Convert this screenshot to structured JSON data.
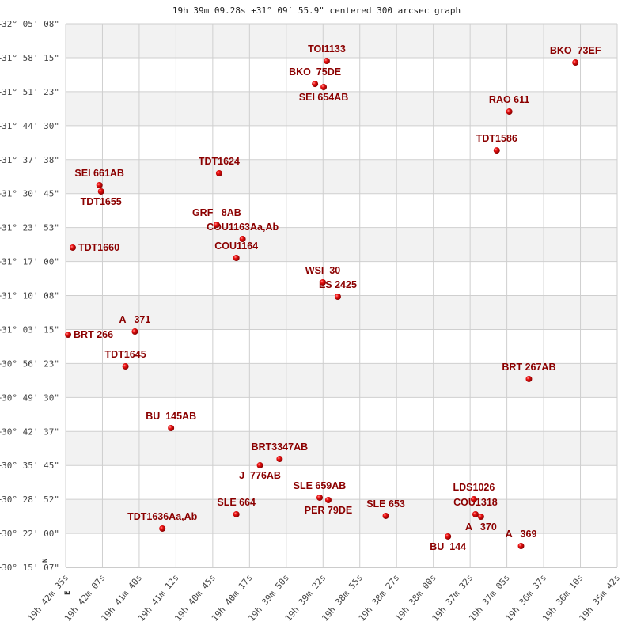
{
  "chart_data": {
    "type": "scatter",
    "title": "19h 39m 09.28s +31° 09′ 55.9\" centered 300 arcsec graph",
    "x_ticks": [
      "19h 42m 35s",
      "19h 42m 07s",
      "19h 41m 40s",
      "19h 41m 12s",
      "19h 40m 45s",
      "19h 40m 17s",
      "19h 39m 50s",
      "19h 39m 22s",
      "19h 38m 55s",
      "19h 38m 27s",
      "19h 38m 00s",
      "19h 37m 32s",
      "19h 37m 05s",
      "19h 36m 37s",
      "19h 36m 10s",
      "19h 35m 42s"
    ],
    "y_ticks": [
      "+32° 05' 08\"",
      "+31° 58' 15\"",
      "+31° 51' 23\"",
      "+31° 44' 30\"",
      "+31° 37' 38\"",
      "+31° 30' 45\"",
      "+31° 23' 53\"",
      "+31° 17' 00\"",
      "+31° 10' 08\"",
      "+31° 03' 15\"",
      "+30° 56' 23\"",
      "+30° 49' 30\"",
      "+30° 42' 37\"",
      "+30° 35' 45\"",
      "+30° 28' 52\"",
      "+30° 22' 00\"",
      "+30° 15' 07\""
    ],
    "x_direction": "RA decreasing to the right",
    "grid": true,
    "band_color": "#f2f2f2",
    "point_color": "#dd0000",
    "label_color": "#8b0000",
    "compass": {
      "north": "N",
      "east": "E"
    },
    "points": [
      {
        "name": "TOI1133",
        "ra": "19h 39m 19.5s",
        "dec": "+31 57 36"
      },
      {
        "name": "BKO  73EF",
        "ra": "19h 36m 13.3s",
        "dec": "+31 57 17"
      },
      {
        "name": "BKO  75DE",
        "ra": "19h 39m 28.3s",
        "dec": "+31 52 57"
      },
      {
        "name": "SEI 654AB",
        "ra": "19h 39m 21.8s",
        "dec": "+31 52 19"
      },
      {
        "name": "RAO 611",
        "ra": "19h 37m 02.8s",
        "dec": "+31 47 21"
      },
      {
        "name": "TDT1586",
        "ra": "19h 37m 12.2s",
        "dec": "+31 39 30"
      },
      {
        "name": "TDT1624",
        "ra": "19h 40m 40.1s",
        "dec": "+31 34 52"
      },
      {
        "name": "SEI 661AB",
        "ra": "19h 42m 09.7s",
        "dec": "+31 32 28"
      },
      {
        "name": "TDT1655",
        "ra": "19h 42m 08.5s",
        "dec": "+31 31 11"
      },
      {
        "name": "GRF   8AB",
        "ra": "19h 40m 41.9s",
        "dec": "+31 24 27"
      },
      {
        "name": "COU1163Aa,Ab",
        "ra": "19h 40m 22.5s",
        "dec": "+31 21 34"
      },
      {
        "name": "COU1164",
        "ra": "19h 40m 27.2s",
        "dec": "+31 17 44"
      },
      {
        "name": "TDT1660",
        "ra": "19h 42m 29.7s",
        "dec": "+31 19 49"
      },
      {
        "name": "WSI  30",
        "ra": "19h 39m 22.4s",
        "dec": "+31 12 46"
      },
      {
        "name": "ES 2425",
        "ra": "19h 39m 11.2s",
        "dec": "+31 09 53"
      },
      {
        "name": "BRT 266",
        "ra": "19h 42m 33.2s",
        "dec": "+31 02 12"
      },
      {
        "name": "A   371",
        "ra": "19h 41m 43.2s",
        "dec": "+31 02 50"
      },
      {
        "name": "TDT1645",
        "ra": "19h 41m 50.2s",
        "dec": "+30 55 47"
      },
      {
        "name": "BRT 267AB",
        "ra": "19h 36m 48.1s",
        "dec": "+30 53 14"
      },
      {
        "name": "BU  145AB",
        "ra": "19h 41m 16.1s",
        "dec": "+30 43 18"
      },
      {
        "name": "BRT3347AB",
        "ra": "19h 39m 54.8s",
        "dec": "+30 37 03"
      },
      {
        "name": "J  776AB",
        "ra": "19h 40m 09.5s",
        "dec": "+30 35 46"
      },
      {
        "name": "SLE 659AB",
        "ra": "19h 39m 24.8s",
        "dec": "+30 29 13"
      },
      {
        "name": "PER 79DE",
        "ra": "19h 39m 18.3s",
        "dec": "+30 28 44"
      },
      {
        "name": "SLE 664",
        "ra": "19h 40m 27.2s",
        "dec": "+30 25 51"
      },
      {
        "name": "SLE 653",
        "ra": "19h 38m 35.3s",
        "dec": "+30 25 32"
      },
      {
        "name": "TDT1636Aa,Ab",
        "ra": "19h 41m 22.6s",
        "dec": "+30 22 58"
      },
      {
        "name": "LDS1026",
        "ra": "19h 37m 29.3s",
        "dec": "+30 28 53"
      },
      {
        "name": "COU1318",
        "ra": "19h 37m 28.1s",
        "dec": "+30 25 51"
      },
      {
        "name": "A   370",
        "ra": "19h 37m 24.0s",
        "dec": "+30 25 22"
      },
      {
        "name": "BU  144",
        "ra": "19h 37m 48.7s",
        "dec": "+30 21 22"
      },
      {
        "name": "A   369",
        "ra": "19h 36m 54.0s",
        "dec": "+30 19 26"
      }
    ]
  }
}
